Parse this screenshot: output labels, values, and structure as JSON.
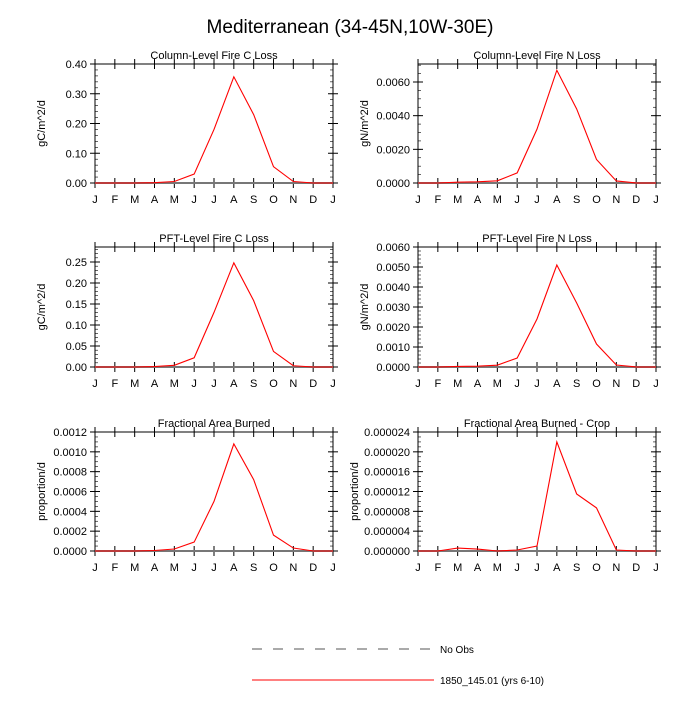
{
  "title": "Mediterranean (34-45N,10W-30E)",
  "months": [
    "J",
    "F",
    "M",
    "A",
    "M",
    "J",
    "J",
    "A",
    "S",
    "O",
    "N",
    "D",
    "J"
  ],
  "legend": [
    {
      "label": "No Obs",
      "style": "dashed",
      "color": "#555555"
    },
    {
      "label": "1850_145.01 (yrs 6-10)",
      "style": "solid",
      "color": "#ff0000"
    }
  ],
  "chart_data": [
    {
      "type": "line",
      "title": "Column-Level Fire C Loss",
      "ylabel": "gC/m^2/d",
      "ylim": [
        0,
        0.4
      ],
      "yticks": [
        0,
        0.1,
        0.2,
        0.3,
        0.4
      ],
      "yticklabels": [
        "0.00",
        "0.10",
        "0.20",
        "0.30",
        "0.40"
      ],
      "minor": 0.02,
      "values": [
        0,
        0,
        0,
        0.001,
        0.005,
        0.03,
        0.18,
        0.357,
        0.23,
        0.055,
        0.005,
        0,
        0
      ]
    },
    {
      "type": "line",
      "title": "Column-Level Fire N Loss",
      "ylabel": "gN/m^2/d",
      "ylim": [
        0,
        0.00707
      ],
      "yticks": [
        0,
        0.002,
        0.004,
        0.006
      ],
      "yticklabels": [
        "0.0000",
        "0.0020",
        "0.0040",
        "0.0060"
      ],
      "minor": 0.0005,
      "values": [
        0,
        0,
        5e-05,
        7e-05,
        0.00013,
        0.0006,
        0.0032,
        0.0067,
        0.0044,
        0.0014,
        0.00012,
        0,
        0
      ]
    },
    {
      "type": "line",
      "title": "PFT-Level Fire C Loss",
      "ylabel": "gC/m^2/d",
      "ylim": [
        0,
        0.2857
      ],
      "yticks": [
        0,
        0.05,
        0.1,
        0.15,
        0.2,
        0.25
      ],
      "yticklabels": [
        "0.00",
        "0.05",
        "0.10",
        "0.15",
        "0.20",
        "0.25"
      ],
      "minor": 0.01,
      "values": [
        0,
        0,
        0,
        0.001,
        0.004,
        0.022,
        0.13,
        0.248,
        0.158,
        0.037,
        0.003,
        0,
        0
      ]
    },
    {
      "type": "line",
      "title": "PFT-Level Fire N Loss",
      "ylabel": "gN/m^2/d",
      "ylim": [
        0,
        0.006
      ],
      "yticks": [
        0,
        0.001,
        0.002,
        0.003,
        0.004,
        0.005,
        0.006
      ],
      "yticklabels": [
        "0.0000",
        "0.0010",
        "0.0020",
        "0.0030",
        "0.0040",
        "0.0050",
        "0.0060"
      ],
      "minor": 0.0002,
      "values": [
        0,
        0,
        3e-05,
        4e-05,
        9e-05,
        0.00045,
        0.0024,
        0.0051,
        0.0032,
        0.00115,
        0.0001,
        0,
        0
      ]
    },
    {
      "type": "line",
      "title": "Fractional Area Burned",
      "ylabel": "proportion/d",
      "ylim": [
        0,
        0.0012
      ],
      "yticks": [
        0,
        0.0002,
        0.0004,
        0.0006,
        0.0008,
        0.001,
        0.0012
      ],
      "yticklabels": [
        "0.0000",
        "0.0002",
        "0.0004",
        "0.0006",
        "0.0008",
        "0.0010",
        "0.0012"
      ],
      "minor": 5e-05,
      "values": [
        0,
        0,
        0,
        5e-06,
        2e-05,
        9e-05,
        0.0005,
        0.00108,
        0.00072,
        0.00016,
        3e-05,
        0,
        0
      ]
    },
    {
      "type": "line",
      "title": "Fractional Area Burned - Crop",
      "ylabel": "proportion/d",
      "ylim": [
        0,
        2.4e-05
      ],
      "yticks": [
        0,
        4e-06,
        8e-06,
        1.2e-05,
        1.6e-05,
        2e-05,
        2.4e-05
      ],
      "yticklabels": [
        "0.000000",
        "0.000004",
        "0.000008",
        "0.000012",
        "0.000016",
        "0.000020",
        "0.000024"
      ],
      "minor": 1e-06,
      "values": [
        0,
        0,
        6e-07,
        4e-07,
        0,
        2e-07,
        1e-06,
        2.2e-05,
        1.15e-05,
        8.7e-06,
        2e-07,
        0,
        0
      ]
    }
  ]
}
